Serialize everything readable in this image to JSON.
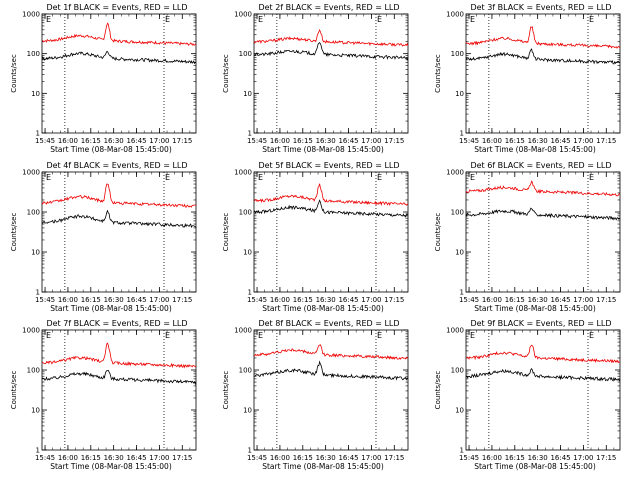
{
  "panels": [
    {
      "title": "Det  1f BLACK = Events, RED = LLD",
      "xlabel": "Start Time (08-Mar-08 15:45:00)",
      "ylabel": "Counts/sec",
      "red_base": 210,
      "red_peak": 560,
      "black_base": 75,
      "black_peak": 112,
      "early_bump": 1.0
    },
    {
      "title": "Det  2f BLACK = Events, RED = LLD",
      "xlabel": "Start Time (08-Mar-08 15:45:00)",
      "ylabel": "Counts/sec",
      "red_base": 200,
      "red_peak": 390,
      "black_base": 95,
      "black_peak": 200,
      "early_bump": 0.6
    },
    {
      "title": "Det  3f BLACK = Events, RED = LLD",
      "xlabel": "Start Time (08-Mar-08 15:45:00)",
      "ylabel": "Counts/sec",
      "red_base": 180,
      "red_peak": 470,
      "black_base": 72,
      "black_peak": 118,
      "early_bump": 1.0
    },
    {
      "title": "Det  4f BLACK = Events, RED = LLD",
      "xlabel": "Start Time (08-Mar-08 15:45:00)",
      "ylabel": "Counts/sec",
      "red_base": 170,
      "red_peak": 520,
      "black_base": 55,
      "black_peak": 100,
      "early_bump": 1.2
    },
    {
      "title": "Det  5f BLACK = Events, RED = LLD",
      "xlabel": "Start Time (08-Mar-08 15:45:00)",
      "ylabel": "Counts/sec",
      "red_base": 190,
      "red_peak": 470,
      "black_base": 100,
      "black_peak": 190,
      "early_bump": 0.9
    },
    {
      "title": "Det  6f BLACK = Events, RED = LLD",
      "xlabel": "Start Time (08-Mar-08 15:45:00)",
      "ylabel": "Counts/sec",
      "red_base": 330,
      "red_peak": 560,
      "black_base": 85,
      "black_peak": 120,
      "early_bump": 0.7
    },
    {
      "title": "Det  7f BLACK = Events, RED = LLD",
      "xlabel": "Start Time (08-Mar-08 15:45:00)",
      "ylabel": "Counts/sec",
      "red_base": 150,
      "red_peak": 460,
      "black_base": 60,
      "black_peak": 100,
      "early_bump": 1.0
    },
    {
      "title": "Det  8f BLACK = Events, RED = LLD",
      "xlabel": "Start Time (08-Mar-08 15:45:00)",
      "ylabel": "Counts/sec",
      "red_base": 240,
      "red_peak": 420,
      "black_base": 75,
      "black_peak": 145,
      "early_bump": 0.9
    },
    {
      "title": "Det  9f BLACK = Events, RED = LLD",
      "xlabel": "Start Time (08-Mar-08 15:45:00)",
      "ylabel": "Counts/sec",
      "red_base": 200,
      "red_peak": 430,
      "black_base": 70,
      "black_peak": 100,
      "early_bump": 1.0
    }
  ],
  "chart_data": {
    "type": "line",
    "xticks": [
      "15:45",
      "16:00",
      "16:15",
      "16:30",
      "16:45",
      "17:00",
      "17:15"
    ],
    "yticks": [
      "1",
      "10",
      "100",
      "1000"
    ],
    "ylim": [
      1,
      1000
    ],
    "yscale": "log",
    "xlabel": "Start Time (08-Mar-08 15:45:00)",
    "ylabel": "Counts/sec",
    "series": [
      {
        "color": "#ee0000",
        "values_note": "LLD rate, ~150-330 counts/sec with flare peak near 16:26"
      },
      {
        "color": "#000000",
        "values_note": "Event rate, ~50-100 counts/sec with flare peak near 16:26"
      }
    ],
    "markers": {
      "E_label": "E",
      "dotted_lines_at": [
        "15:58",
        "17:03"
      ]
    }
  }
}
